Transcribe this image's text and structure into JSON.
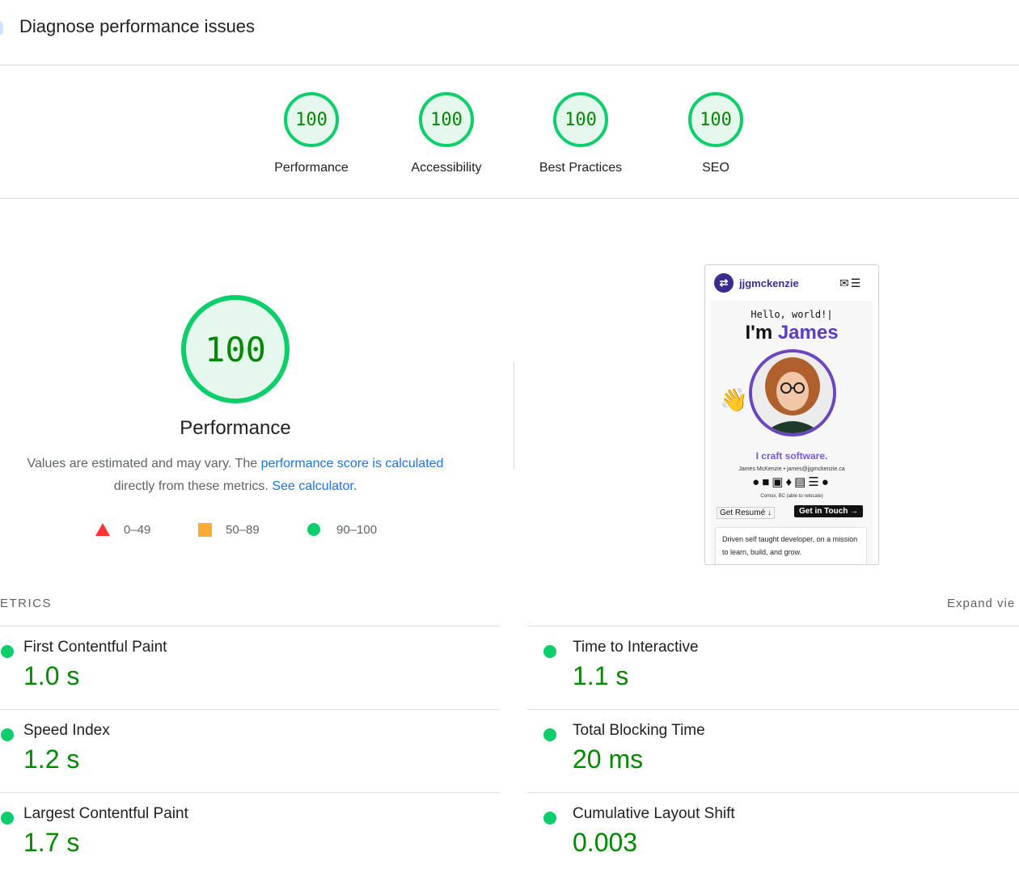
{
  "header": {
    "title": "Diagnose performance issues"
  },
  "categories": [
    {
      "score": "100",
      "label": "Performance"
    },
    {
      "score": "100",
      "label": "Accessibility"
    },
    {
      "score": "100",
      "label": "Best Practices"
    },
    {
      "score": "100",
      "label": "SEO"
    }
  ],
  "performance": {
    "score": "100",
    "title": "Performance",
    "desc_prefix": "Values are estimated and may vary. The ",
    "desc_link1": "performance score is calculated",
    "desc_mid": "directly from these metrics. ",
    "desc_link2": "See calculator."
  },
  "legend": [
    {
      "shape": "triangle",
      "label": "0–49",
      "color": "#ff3333"
    },
    {
      "shape": "square",
      "label": "50–89",
      "color": "#ffaa33"
    },
    {
      "shape": "circle",
      "label": "90–100",
      "color": "#0cce6b"
    }
  ],
  "screenshot": {
    "brand": "jjgmckenzie",
    "hello": "Hello, world!|",
    "name_prefix": "I'm ",
    "name": "James",
    "tagline": "I craft software.",
    "contact": "James McKenzie • james@jjgmckenzie.ca",
    "location": "Comox, BC (able to relocate)",
    "resume_button": "Get Resumé ↓",
    "touch_button": "Get in Touch →",
    "card_text": "Driven self taught developer, on a mission to learn, build, and grow."
  },
  "metrics": {
    "heading": "ETRICS",
    "expand": "Expand vie",
    "items": [
      {
        "name": "First Contentful Paint",
        "value": "1.0 s"
      },
      {
        "name": "Time to Interactive",
        "value": "1.1 s"
      },
      {
        "name": "Speed Index",
        "value": "1.2 s"
      },
      {
        "name": "Total Blocking Time",
        "value": "20 ms"
      },
      {
        "name": "Largest Contentful Paint",
        "value": "1.7 s"
      },
      {
        "name": "Cumulative Layout Shift",
        "value": "0.003"
      }
    ]
  },
  "colors": {
    "pass": "#0cce6b",
    "pass_text": "#008800",
    "link": "#1a73e8"
  }
}
